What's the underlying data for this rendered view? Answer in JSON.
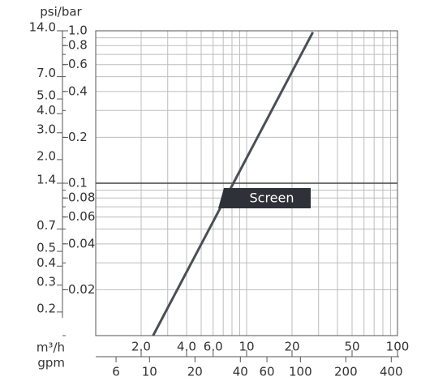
{
  "chart_data": {
    "type": "line",
    "ylabel": "psi/bar",
    "xlabel": "m³/h",
    "x2label": "gpm",
    "xlog": true,
    "ylog": true,
    "grid": true,
    "reference_line": 0.1,
    "x": [
      2.4,
      27.5
    ],
    "series": [
      {
        "name": "Screen",
        "color": "#4a4f57",
        "values": [
          0.01,
          0.98
        ]
      }
    ],
    "xlim": [
      1,
      100
    ],
    "ylim": [
      0.01,
      1
    ],
    "y2lim": [
      0.14,
      14
    ],
    "x2lim": [
      4.4,
      440
    ],
    "yticks": [
      {
        "value": 1,
        "label": "1.0"
      },
      0.8,
      0.6,
      0.4,
      0.2,
      0.1,
      0.08,
      0.06,
      0.04,
      0.02
    ],
    "y2ticks": [
      {
        "value": 14,
        "label": "14.0"
      },
      {
        "value": 7,
        "label": "7.0"
      },
      {
        "value": 5,
        "label": "5.0"
      },
      {
        "value": 4,
        "label": "4.0"
      },
      {
        "value": 3,
        "label": "3.0"
      },
      {
        "value": 2,
        "label": "2.0"
      },
      1.4,
      0.7,
      0.5,
      0.4,
      0.3,
      0.2
    ],
    "xticks": [
      {
        "value": 2,
        "label": "2.0"
      },
      {
        "value": 4,
        "label": "4.0"
      },
      {
        "value": 6,
        "label": "6.0"
      },
      10,
      20,
      50,
      100
    ],
    "x2ticks": [
      6,
      10,
      20,
      40,
      60,
      100,
      200,
      400
    ],
    "xgrid": [
      1,
      2,
      3,
      4,
      5,
      6,
      7,
      8,
      9,
      10,
      20,
      30,
      40,
      50,
      60,
      70,
      80,
      90,
      100
    ],
    "ygrid": [
      0.01,
      0.02,
      0.03,
      0.04,
      0.05,
      0.06,
      0.07,
      0.08,
      0.09,
      0.1,
      0.2,
      0.3,
      0.4,
      0.5,
      0.6,
      0.7,
      0.8,
      0.9,
      1
    ]
  }
}
